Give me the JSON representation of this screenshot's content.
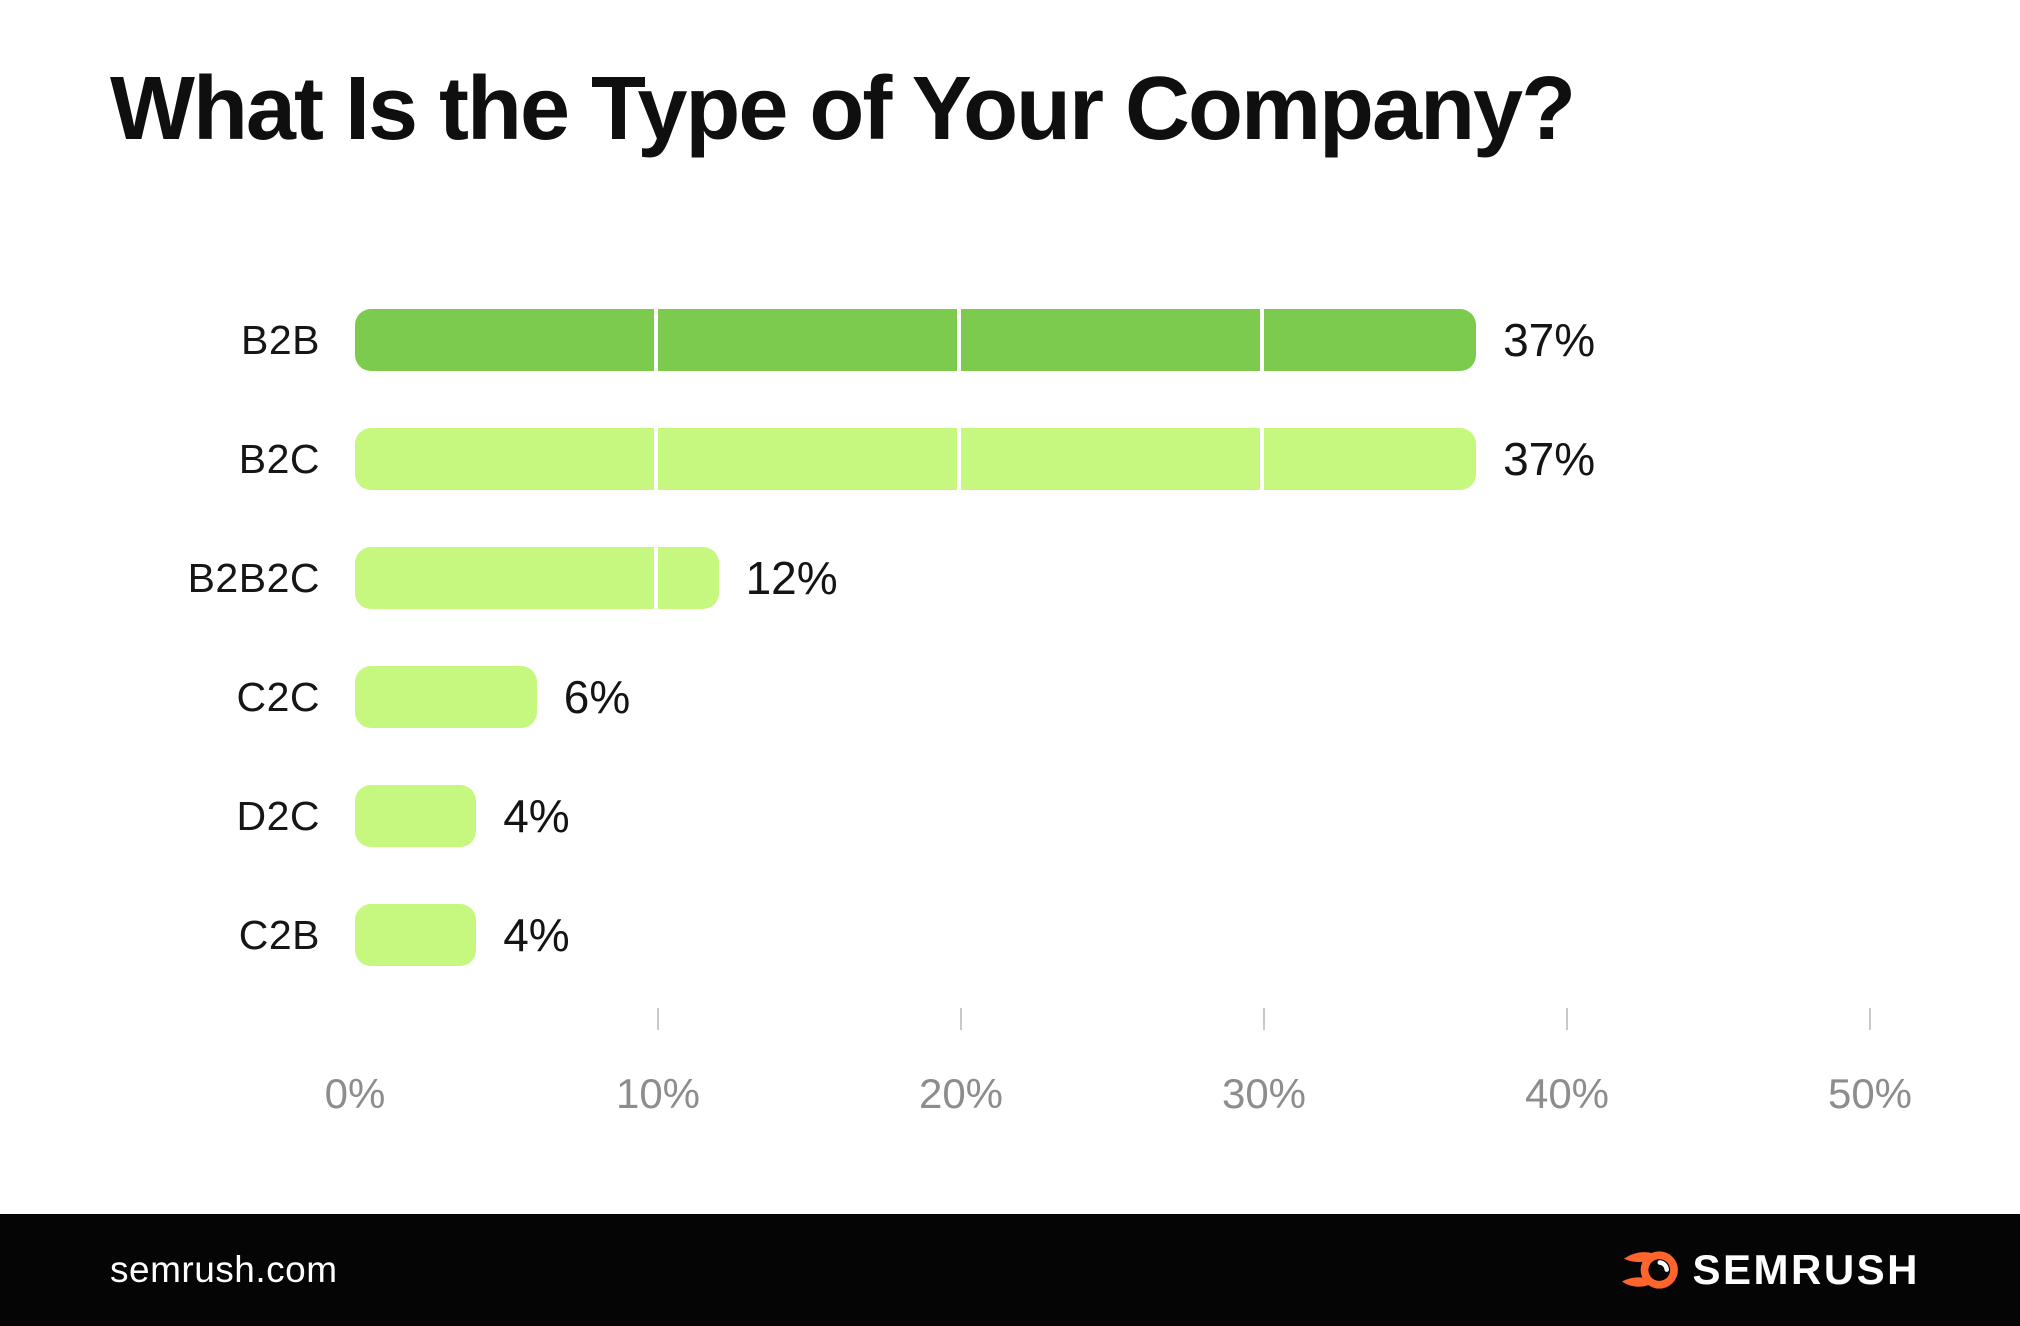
{
  "title": "What Is the Type of Your Company?",
  "chart_data": {
    "type": "bar",
    "orientation": "horizontal",
    "title": "What Is the Type of Your Company?",
    "categories": [
      "B2B",
      "B2C",
      "B2B2C",
      "C2C",
      "D2C",
      "C2B"
    ],
    "values": [
      37,
      37,
      12,
      6,
      4,
      4
    ],
    "value_labels": [
      "37%",
      "37%",
      "12%",
      "6%",
      "4%",
      "4%"
    ],
    "xlabel": "",
    "ylabel": "",
    "xlim": [
      0,
      50
    ],
    "x_tick_labels": [
      "0%",
      "10%",
      "20%",
      "30%",
      "40%",
      "50%"
    ],
    "grid": false,
    "legend": false,
    "bar_colors": [
      "#7CCB4E",
      "#C6F77F",
      "#C6F77F",
      "#C6F77F",
      "#C6F77F",
      "#C6F77F"
    ]
  },
  "colors": {
    "bar_primary": "#7CCB4E",
    "bar_secondary": "#C6F77F",
    "axis_text": "#8D8D8D",
    "tick_mark": "#C9C9C9",
    "title_text": "#0F0F0F",
    "footer_background": "#050505",
    "brand_orange": "#FF642D"
  },
  "footer": {
    "site": "semrush.com",
    "brand": "SEMRUSH"
  }
}
